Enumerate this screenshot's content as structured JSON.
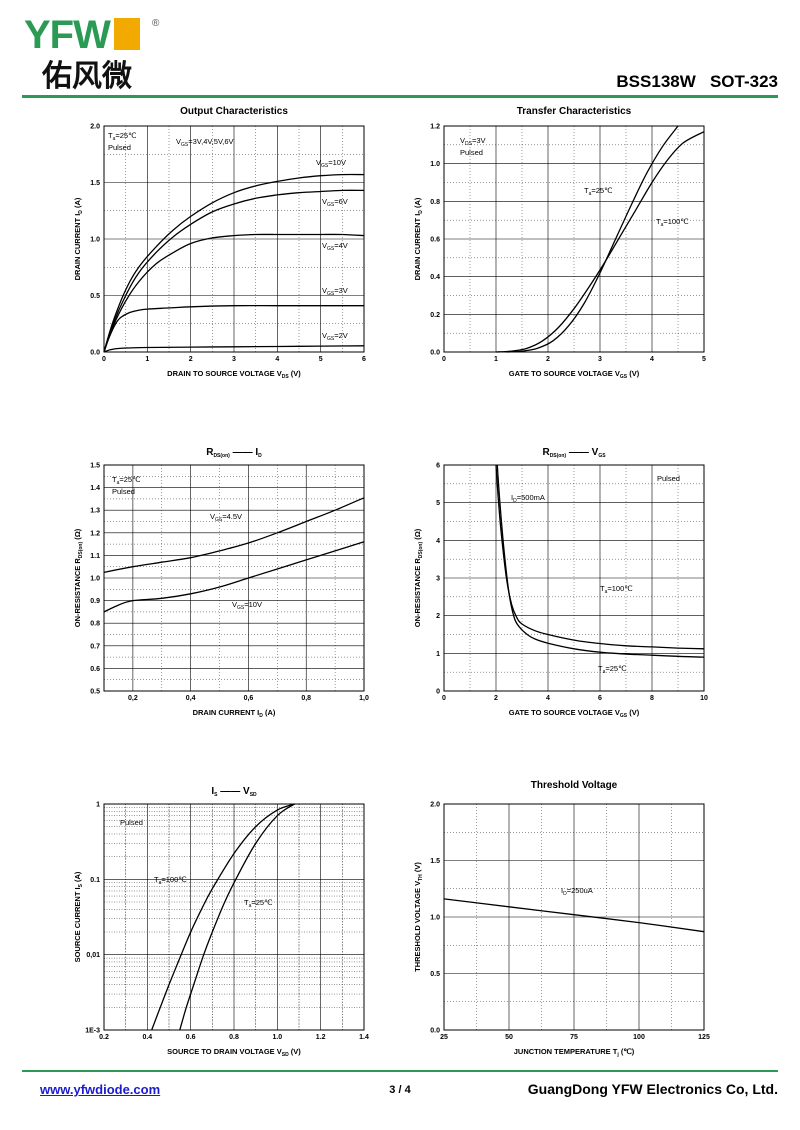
{
  "header": {
    "logo_letters": "YFW",
    "logo_cn": "佑风微",
    "part_number": "BSS138W",
    "package": "SOT-323"
  },
  "footer": {
    "website": "www.yfwdiode.com",
    "page": "3 / 4",
    "company": "GuangDong YFW Electronics Co, Ltd."
  },
  "colors": {
    "accent_green": "#2a9a55",
    "logo_yellow": "#f2a900",
    "link_blue": "#1a1ad0"
  },
  "chart_data": [
    {
      "id": "c1",
      "type": "line",
      "title": "Output Characteristics",
      "xlabel": "DRAIN TO SOURCE VOLTAGE   V",
      "xlabel_sub": "DS",
      "xlabel_unit": "(V)",
      "ylabel": "DRAIN CURRENT   I",
      "ylabel_sub": "D",
      "ylabel_unit": "(A)",
      "xlim": [
        0,
        6
      ],
      "ylim": [
        0,
        2.0
      ],
      "xticks": [
        "0",
        "1",
        "2",
        "3",
        "4",
        "5",
        "6"
      ],
      "yticks": [
        "0.0",
        "0.5",
        "1.0",
        "1.5",
        "2.0"
      ],
      "annotations": [
        "T =25℃",
        "Pulsed",
        "V =3V,4V,5V,6V"
      ],
      "series": [
        {
          "name": "V =10V",
          "x": [
            0,
            0.2,
            0.5,
            0.8,
            1.2,
            1.6,
            2,
            2.5,
            3,
            3.5,
            4,
            4.5,
            5,
            5.5,
            6
          ],
          "y": [
            0,
            0.26,
            0.55,
            0.75,
            0.93,
            1.08,
            1.2,
            1.32,
            1.41,
            1.47,
            1.51,
            1.54,
            1.56,
            1.57,
            1.57
          ]
        },
        {
          "name": "V =6V",
          "x": [
            0,
            0.2,
            0.5,
            0.8,
            1.2,
            1.6,
            2,
            2.5,
            3,
            3.5,
            4,
            4.5,
            5,
            5.5,
            6
          ],
          "y": [
            0,
            0.24,
            0.5,
            0.7,
            0.88,
            1.02,
            1.13,
            1.24,
            1.31,
            1.36,
            1.39,
            1.41,
            1.42,
            1.43,
            1.43
          ]
        },
        {
          "name": "V =4V",
          "x": [
            0,
            0.2,
            0.5,
            0.8,
            1.2,
            1.6,
            2,
            2.5,
            3,
            3.5,
            4,
            4.5,
            5,
            5.5,
            6
          ],
          "y": [
            0,
            0.22,
            0.45,
            0.62,
            0.78,
            0.88,
            0.96,
            1.01,
            1.03,
            1.04,
            1.04,
            1.04,
            1.04,
            1.04,
            1.03
          ]
        },
        {
          "name": "V =3V",
          "x": [
            0,
            0.1,
            0.2,
            0.3,
            0.4,
            0.6,
            0.8,
            1,
            1.5,
            2,
            3,
            4,
            5,
            6
          ],
          "y": [
            0,
            0.11,
            0.2,
            0.27,
            0.31,
            0.35,
            0.37,
            0.38,
            0.39,
            0.4,
            0.41,
            0.41,
            0.41,
            0.41
          ]
        },
        {
          "name": "V =2V",
          "x": [
            0,
            0.1,
            0.2,
            0.3,
            0.5,
            1,
            2,
            3,
            4,
            5,
            6
          ],
          "y": [
            0,
            0.015,
            0.025,
            0.03,
            0.035,
            0.04,
            0.043,
            0.046,
            0.049,
            0.052,
            0.055
          ]
        }
      ]
    },
    {
      "id": "c2",
      "type": "line",
      "title": "Transfer Characteristics",
      "xlabel": "GATE TO SOURCE VOLTAGE   V",
      "xlabel_sub": "GS",
      "xlabel_unit": "(V)",
      "ylabel": "DRAIN CURRENT   I",
      "ylabel_sub": "D",
      "ylabel_unit": "(A)",
      "xlim": [
        0,
        5
      ],
      "ylim": [
        0,
        1.2
      ],
      "xticks": [
        "0",
        "1",
        "2",
        "3",
        "4",
        "5"
      ],
      "yticks": [
        "0.0",
        "0.2",
        "0.4",
        "0.6",
        "0.8",
        "1.0",
        "1.2"
      ],
      "annotations": [
        "V =3V",
        "Pulsed"
      ],
      "series": [
        {
          "name": "T =25℃",
          "x": [
            1.2,
            1.5,
            1.8,
            2.1,
            2.4,
            2.7,
            3.0,
            3.3,
            3.6,
            3.9,
            4.2,
            4.5
          ],
          "y": [
            0,
            0.005,
            0.02,
            0.06,
            0.14,
            0.26,
            0.42,
            0.6,
            0.78,
            0.95,
            1.09,
            1.2
          ]
        },
        {
          "name": "T =100℃",
          "x": [
            1.0,
            1.3,
            1.6,
            1.9,
            2.2,
            2.5,
            2.8,
            3.1,
            3.4,
            3.7,
            4.0,
            4.3,
            4.6,
            5.0
          ],
          "y": [
            0,
            0.005,
            0.02,
            0.06,
            0.13,
            0.23,
            0.35,
            0.48,
            0.62,
            0.76,
            0.9,
            1.02,
            1.11,
            1.17
          ]
        }
      ]
    },
    {
      "id": "c3",
      "type": "line",
      "title": "R        I",
      "title_sub": "DS(on)",
      "title_dash": "——",
      "title_sub2": "D",
      "xlabel": "DRAIN CURRENT   I",
      "xlabel_sub": "D",
      "xlabel_unit": "(A)",
      "ylabel": "ON-RESISTANCE   R",
      "ylabel_sub": "DS(on)",
      "ylabel_unit": "(Ω)",
      "xlim": [
        0.1,
        1.0
      ],
      "ylim": [
        0.5,
        1.5
      ],
      "xticks": [
        "0,2",
        "0,4",
        "0,6",
        "0,8",
        "1,0"
      ],
      "yticks": [
        "0.5",
        "0.6",
        "0.7",
        "0.8",
        "0.9",
        "1.0",
        "1.1",
        "1.2",
        "1.3",
        "1.4",
        "1.5"
      ],
      "annotations": [
        "T =25℃",
        "Pulsed"
      ],
      "series": [
        {
          "name": "V =4.5V",
          "x": [
            0.1,
            0.2,
            0.3,
            0.4,
            0.5,
            0.6,
            0.7,
            0.8,
            0.9,
            1.0
          ],
          "y": [
            1.025,
            1.05,
            1.07,
            1.09,
            1.12,
            1.155,
            1.2,
            1.25,
            1.3,
            1.355
          ]
        },
        {
          "name": "V =10V",
          "x": [
            0.1,
            0.15,
            0.2,
            0.3,
            0.4,
            0.5,
            0.6,
            0.7,
            0.8,
            0.9,
            1.0
          ],
          "y": [
            0.85,
            0.88,
            0.9,
            0.91,
            0.93,
            0.96,
            1.0,
            1.04,
            1.08,
            1.12,
            1.16
          ]
        }
      ]
    },
    {
      "id": "c4",
      "type": "line",
      "title": "R        V",
      "title_sub": "DS(on)",
      "title_dash": "——",
      "title_sub2": "GS",
      "xlabel": "GATE TO SOURCE VOLTAGE   V",
      "xlabel_sub": "GS",
      "xlabel_unit": "(V)",
      "ylabel": "ON-RESISTANCE   R",
      "ylabel_sub": "DS(on)",
      "ylabel_unit": "(Ω)",
      "xlim": [
        0,
        10
      ],
      "ylim": [
        0,
        6
      ],
      "xticks": [
        "0",
        "2",
        "4",
        "6",
        "8",
        "10"
      ],
      "yticks": [
        "0",
        "1",
        "2",
        "3",
        "4",
        "5",
        "6"
      ],
      "annotations": [
        "Pulsed",
        "I =500mA"
      ],
      "series": [
        {
          "name": "T =100℃",
          "x": [
            2.0,
            2.1,
            2.2,
            2.4,
            2.6,
            2.8,
            3.0,
            3.5,
            4,
            5,
            6,
            7,
            8,
            9,
            10
          ],
          "y": [
            6.0,
            5.0,
            4.2,
            3.0,
            2.3,
            1.95,
            1.78,
            1.6,
            1.5,
            1.35,
            1.26,
            1.2,
            1.17,
            1.14,
            1.12
          ]
        },
        {
          "name": "T =25℃",
          "x": [
            2.05,
            2.15,
            2.3,
            2.5,
            2.7,
            2.9,
            3.2,
            3.5,
            4,
            5,
            6,
            7,
            8,
            9,
            10
          ],
          "y": [
            6.0,
            5.0,
            3.8,
            2.6,
            1.95,
            1.7,
            1.5,
            1.38,
            1.27,
            1.12,
            1.03,
            0.98,
            0.95,
            0.92,
            0.9
          ]
        }
      ]
    },
    {
      "id": "c5",
      "type": "line",
      "yscale": "log",
      "title": "I        V",
      "title_sub": "S",
      "title_dash": "——",
      "title_sub2": "SD",
      "xlabel": "SOURCE TO DRAIN VOLTAGE   V",
      "xlabel_sub": "SD",
      "xlabel_unit": "(V)",
      "ylabel": "SOURCE CURRENT   I",
      "ylabel_sub": "S",
      "ylabel_unit": "(A)",
      "xlim": [
        0.2,
        1.4
      ],
      "ylim": [
        0.001,
        1
      ],
      "xticks": [
        "0.2",
        "0.4",
        "0.6",
        "0.8",
        "1.0",
        "1.2",
        "1.4"
      ],
      "yticks": [
        "1E-3",
        "0,01",
        "0.1",
        "1"
      ],
      "annotations": [
        "Pulsed"
      ],
      "series": [
        {
          "name": "T =100℃",
          "x": [
            0.42,
            0.46,
            0.5,
            0.55,
            0.6,
            0.65,
            0.7,
            0.8,
            0.9,
            1.0,
            1.08
          ],
          "y": [
            0.001,
            0.002,
            0.004,
            0.009,
            0.02,
            0.04,
            0.075,
            0.22,
            0.5,
            0.83,
            1.0
          ]
        },
        {
          "name": "T =25℃",
          "x": [
            0.55,
            0.58,
            0.62,
            0.66,
            0.7,
            0.75,
            0.8,
            0.9,
            1.0,
            1.08
          ],
          "y": [
            0.001,
            0.002,
            0.0045,
            0.01,
            0.02,
            0.045,
            0.09,
            0.3,
            0.7,
            1.0
          ]
        }
      ]
    },
    {
      "id": "c6",
      "type": "line",
      "title": "Threshold Voltage",
      "xlabel": "JUNCTION TEMPERATURE   T",
      "xlabel_sub": "j",
      "xlabel_unit": "(℃)",
      "ylabel": "THRESHOLD VOLTAGE   V",
      "ylabel_sub": "TH",
      "ylabel_unit": "(V)",
      "xlim": [
        25,
        125
      ],
      "ylim": [
        0,
        2.0
      ],
      "xticks": [
        "25",
        "50",
        "75",
        "100",
        "125"
      ],
      "yticks": [
        "0.0",
        "0.5",
        "1.0",
        "1.5",
        "2.0"
      ],
      "annotations": [
        "I =250uA"
      ],
      "series": [
        {
          "name": "",
          "x": [
            25,
            50,
            75,
            100,
            125
          ],
          "y": [
            1.16,
            1.09,
            1.02,
            0.95,
            0.87
          ]
        }
      ]
    }
  ]
}
